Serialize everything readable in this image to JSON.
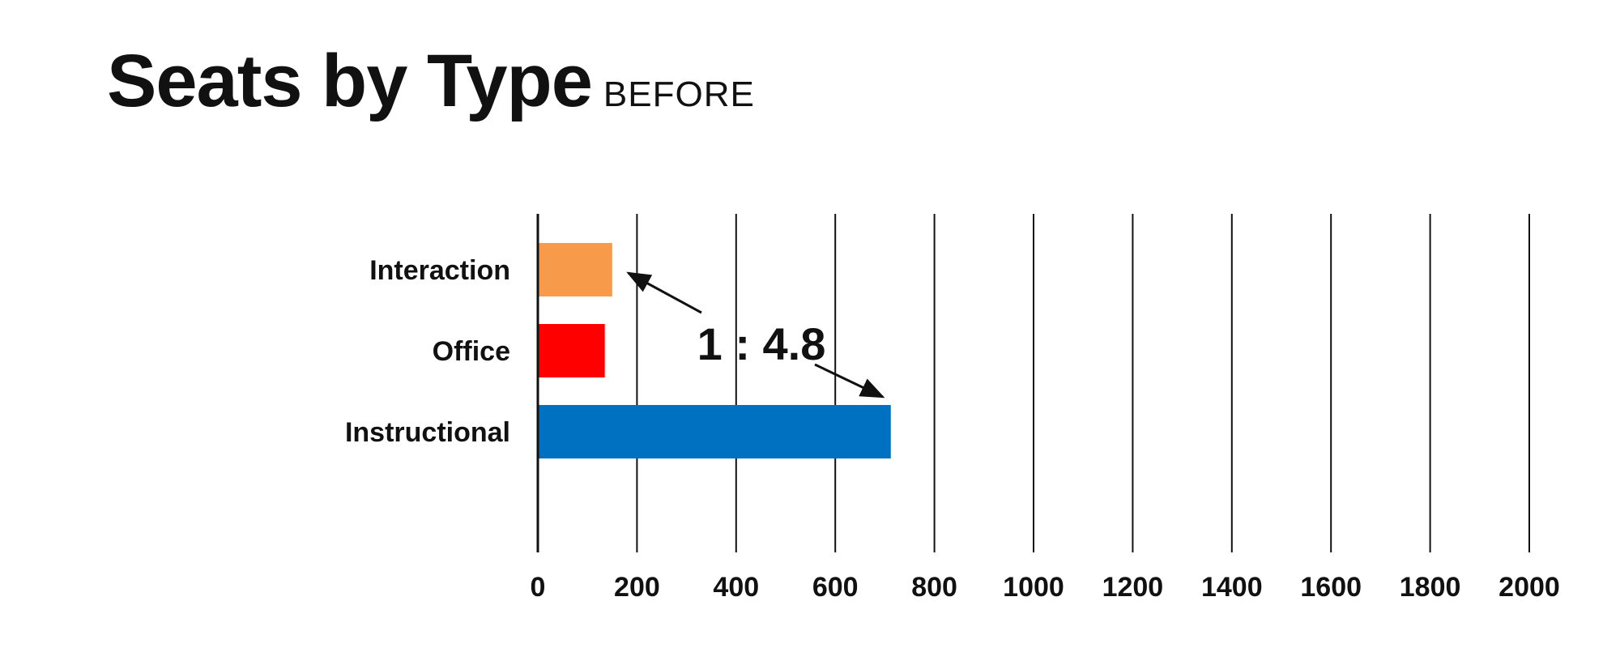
{
  "title": "Seats by Type",
  "subtitle": "BEFORE",
  "chart_data": {
    "type": "bar",
    "orientation": "horizontal",
    "categories": [
      "Interaction",
      "Office",
      "Instructional"
    ],
    "values": [
      150,
      135,
      712
    ],
    "colors": [
      "#f79a4a",
      "#ff0000",
      "#0070c0"
    ],
    "xlim": [
      0,
      2000
    ],
    "xticks": [
      0,
      200,
      400,
      600,
      800,
      1000,
      1200,
      1400,
      1600,
      1800,
      2000
    ],
    "grid": true,
    "annotation": {
      "text": "1 : 4.8",
      "from_category": "Interaction",
      "to_category": "Instructional"
    }
  }
}
